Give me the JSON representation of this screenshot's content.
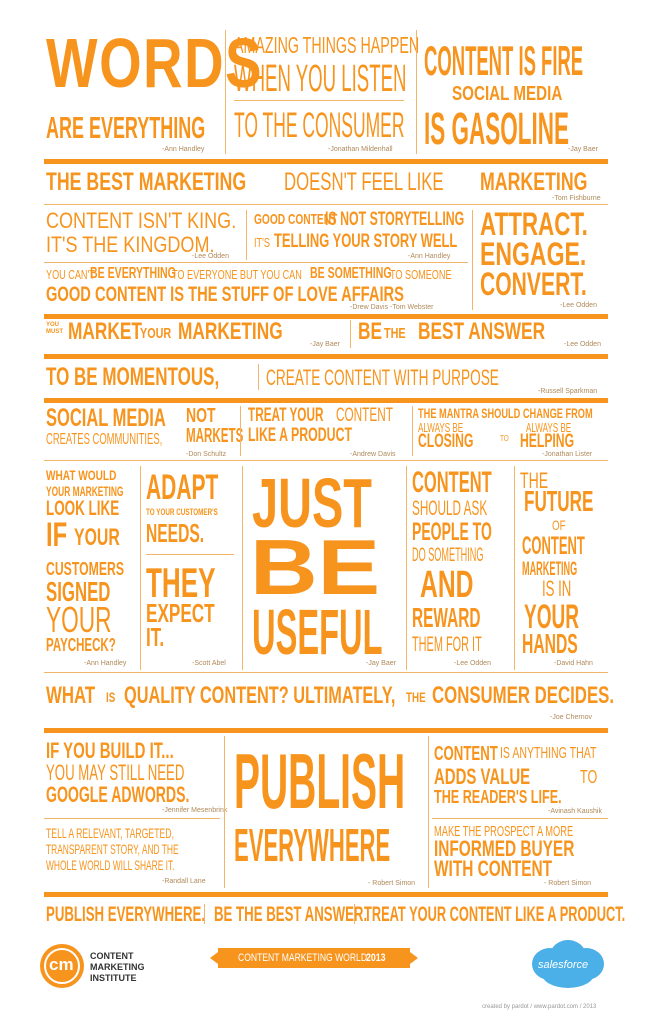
{
  "row1": {
    "words": "WORDS",
    "are_everything": "ARE EVERYTHING",
    "attr_handley": "-Ann Handley",
    "amazing_1": "AMAZING THINGS HAPPEN",
    "amazing_2": "WHEN YOU LISTEN",
    "amazing_3": "TO THE CONSUMER",
    "attr_mildenhall": "-Jonathan Mildenhall",
    "fire_1": "CONTENT IS FIRE",
    "fire_2": "SOCIAL MEDIA",
    "fire_3": "IS GASOLINE",
    "attr_baer": "-Jay Baer"
  },
  "row2": {
    "best_a": "THE BEST MARKETING",
    "best_b": "DOESN'T FEEL LIKE",
    "best_c": "MARKETING",
    "attr": "-Tom Fishburne"
  },
  "row3": {
    "king_1": "CONTENT ISN'T KING.",
    "king_2": "IT'S THE KINGDOM.",
    "attr_odden": "-Lee Odden",
    "story_1a": "GOOD CONTENT",
    "story_1b": "IS NOT STORYTELLING",
    "story_2a": "IT'S",
    "story_2b": "TELLING YOUR STORY WELL",
    "attr_handley": "-Ann Handley",
    "cant_a": "YOU CAN'T",
    "cant_b": "BE EVERYTHING",
    "cant_c": "TO EVERYONE BUT YOU CAN",
    "cant_d": "BE SOMETHING",
    "cant_e": "TO SOMEONE",
    "love": "GOOD CONTENT IS THE STUFF OF LOVE AFFAIRS",
    "attr_davis": "-Drew Davis  -Tom Webster",
    "attract": "ATTRACT.",
    "engage": "ENGAGE.",
    "convert": "CONVERT.",
    "attr_odden2": "-Lee Odden"
  },
  "row4": {
    "you_must": "YOU MUST",
    "market": "MARKET",
    "your": "YOUR",
    "marketing": "MARKETING",
    "attr_baer": "-Jay Baer",
    "be": "BE",
    "the": "THE",
    "best_answer": "BEST ANSWER",
    "attr_odden": "-Lee Odden"
  },
  "row5": {
    "momentous": "TO BE MOMENTOUS,",
    "purpose": "CREATE CONTENT WITH PURPOSE",
    "attr": "-Russell Sparkman"
  },
  "row6": {
    "social_1": "SOCIAL MEDIA",
    "social_2": "CREATES COMMUNITIES,",
    "not": "NOT",
    "markets": "MARKETS",
    "attr_schultz": "-Don Schultz",
    "treat_1a": "TREAT YOUR",
    "treat_1b": "CONTENT",
    "treat_2": "LIKE A PRODUCT",
    "attr_davis": "-Andrew Davis",
    "mantra": "THE MANTRA SHOULD CHANGE FROM",
    "always_1": "ALWAYS BE",
    "closing": "CLOSING",
    "to": "TO",
    "always_2": "ALWAYS BE",
    "helping": "HELPING",
    "attr_lister": "-Jonathan Lister"
  },
  "row7": {
    "what_1": "WHAT WOULD",
    "what_2": "YOUR MARKETING",
    "what_3": "LOOK LIKE",
    "if": "IF",
    "your": "YOUR",
    "customers": "CUSTOMERS",
    "signed": "SIGNED",
    "your2": "YOUR",
    "paycheck": "PAYCHECK?",
    "attr_handley": "-Ann Handley",
    "adapt": "ADAPT",
    "to_your": "TO YOUR CUSTOMER'S",
    "needs": "NEEDS.",
    "they": "THEY",
    "expect": "EXPECT",
    "it": "IT.",
    "attr_abel": "-Scott Abel",
    "just": "JUST",
    "be": "BE",
    "useful": "USEFUL",
    "attr_baer": "-Jay Baer",
    "content": "CONTENT",
    "should_ask": "SHOULD ASK",
    "people_to": "PEOPLE TO",
    "do_something": "DO SOMETHING",
    "and": "AND",
    "reward": "REWARD",
    "them": "THEM FOR IT",
    "attr_odden": "-Lee Odden",
    "the": "THE",
    "future": "FUTURE",
    "of": "OF",
    "content2": "CONTENT",
    "marketing": "MARKETING",
    "is_in": "IS IN",
    "your3": "YOUR",
    "hands": "HANDS",
    "attr_hahn": "-David Hahn"
  },
  "row8": {
    "what": "WHAT",
    "is": "IS",
    "quality": "QUALITY CONTENT? ULTIMATELY,",
    "the": "THE",
    "consumer": "CONSUMER DECIDES.",
    "attr": "-Joe Chernov"
  },
  "row9": {
    "build": "IF YOU BUILD IT...",
    "may": "YOU MAY STILL NEED",
    "adwords": "GOOGLE ADWORDS.",
    "attr_mesenbrink": "-Jennifer Mesenbrink",
    "tell_1": "TELL A RELEVANT, TARGETED,",
    "tell_2": "TRANSPARENT STORY, AND THE",
    "tell_3": "WHOLE WORLD WILL SHARE IT.",
    "attr_lane": "-Randall Lane",
    "publish": "PUBLISH",
    "everywhere": "EVERYWHERE",
    "attr_simon": "- Robert Simon",
    "content": "CONTENT",
    "anything": "IS ANYTHING THAT",
    "adds": "ADDS VALUE",
    "to": "TO",
    "readers": "THE READER'S LIFE.",
    "attr_kaushik": "-Avinash Kaushik",
    "make": "MAKE THE PROSPECT A MORE",
    "informed": "INFORMED BUYER",
    "with": "WITH CONTENT",
    "attr_simon2": "- Robert Simon"
  },
  "footer": {
    "publish": "PUBLISH EVERYWHERE.",
    "best": "BE THE BEST ANSWER.",
    "treat": "TREAT YOUR CONTENT LIKE A PRODUCT.",
    "cmi_logo": "cm",
    "cmi_1": "CONTENT",
    "cmi_2": "MARKETING",
    "cmi_3": "INSTITUTE",
    "event": "CONTENT MARKETING WORLD",
    "year": "2013",
    "salesforce": "salesforce",
    "credit": "created by pardot  /  www.pardot.com  /  2013"
  },
  "colors": {
    "accent": "#f7941d",
    "text_light": "#b08a5a"
  }
}
